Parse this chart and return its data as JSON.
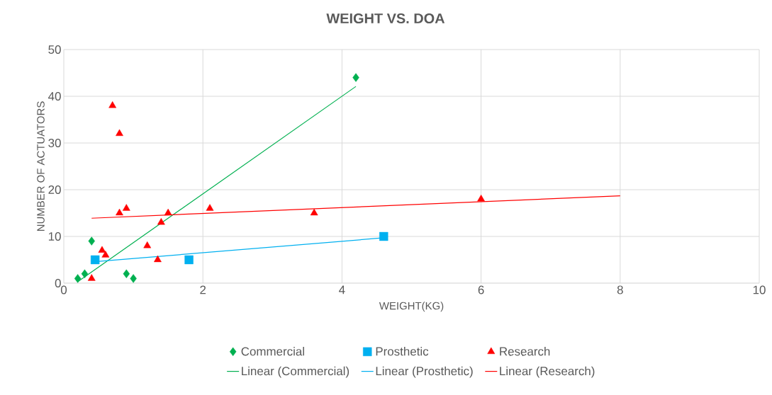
{
  "chart_data": {
    "type": "scatter",
    "title": "WEIGHT VS. DOA",
    "xlabel": "WEIGHT(KG)",
    "ylabel": "NUMBER OF ACTUATORS",
    "xlim": [
      0,
      10
    ],
    "ylim": [
      0,
      50
    ],
    "xticks": [
      0,
      2,
      4,
      6,
      8,
      10
    ],
    "yticks": [
      0,
      10,
      20,
      30,
      40,
      50
    ],
    "grid": true,
    "legend": "bottom",
    "series": [
      {
        "name": "Commercial",
        "color": "#00b050",
        "marker": "diamond",
        "x": [
          0.2,
          0.3,
          0.4,
          0.9,
          1.0,
          4.2
        ],
        "values": [
          1,
          2,
          9,
          2,
          1,
          44
        ]
      },
      {
        "name": "Prosthetic",
        "color": "#00b0f0",
        "marker": "square",
        "x": [
          0.45,
          1.8,
          4.6
        ],
        "values": [
          5,
          5,
          10
        ]
      },
      {
        "name": "Research",
        "color": "#ff0000",
        "marker": "triangle",
        "x": [
          0.4,
          0.55,
          0.6,
          0.7,
          0.8,
          0.8,
          0.9,
          1.2,
          1.35,
          1.4,
          1.5,
          2.1,
          3.6,
          6.0
        ],
        "values": [
          1,
          7,
          6,
          38,
          32,
          15,
          16,
          8,
          5,
          13,
          15,
          16,
          15,
          18
        ]
      },
      {
        "name": "Linear (Commercial)",
        "type": "line",
        "marker": "none",
        "line_style": "solid",
        "color": "#00b050",
        "x": [
          0.2,
          4.2
        ],
        "values": [
          0.3,
          42.1
        ]
      },
      {
        "name": "Linear (Prosthetic)",
        "type": "line",
        "marker": "none",
        "line_style": "solid",
        "color": "#00b0f0",
        "x": [
          0.45,
          4.6
        ],
        "values": [
          4.6,
          9.7
        ]
      },
      {
        "name": "Linear (Research)",
        "type": "line",
        "marker": "none",
        "line_style": "solid",
        "color": "#ff0000",
        "x": [
          0.4,
          8.0
        ],
        "values": [
          13.9,
          18.7
        ]
      }
    ]
  }
}
